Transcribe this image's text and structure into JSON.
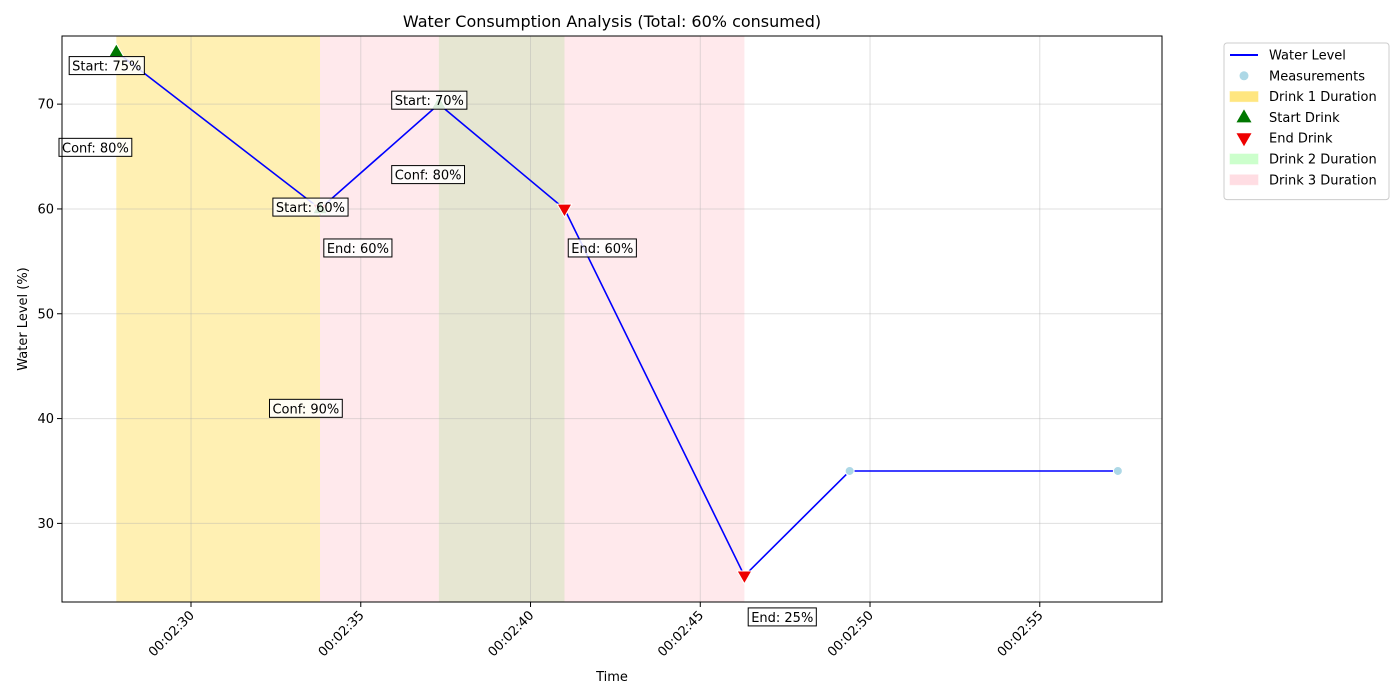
{
  "chart_data": {
    "type": "line",
    "title": "Water Consumption Analysis (Total: 60% consumed)",
    "xlabel": "Time",
    "ylabel": "Water Level (%)",
    "xlim": [
      146.2,
      178.6
    ],
    "ylim": [
      22.5,
      76.5
    ],
    "grid": true,
    "x_ticks": [
      {
        "t": 150,
        "label": "00:02:30"
      },
      {
        "t": 155,
        "label": "00:02:35"
      },
      {
        "t": 160,
        "label": "00:02:40"
      },
      {
        "t": 165,
        "label": "00:02:45"
      },
      {
        "t": 170,
        "label": "00:02:50"
      },
      {
        "t": 175,
        "label": "00:02:55"
      }
    ],
    "y_ticks": [
      30,
      40,
      50,
      60,
      70
    ],
    "series": [
      {
        "name": "Water Level",
        "color": "#0000ff",
        "points": [
          {
            "t": 147.8,
            "v": 75
          },
          {
            "t": 153.8,
            "v": 60
          },
          {
            "t": 157.3,
            "v": 70
          },
          {
            "t": 161.0,
            "v": 60
          },
          {
            "t": 166.3,
            "v": 25
          },
          {
            "t": 169.4,
            "v": 35
          },
          {
            "t": 177.3,
            "v": 35
          }
        ]
      }
    ],
    "measurements": {
      "name": "Measurements",
      "color": "#add8e6",
      "points": [
        {
          "t": 169.4,
          "v": 35
        },
        {
          "t": 177.3,
          "v": 35
        }
      ]
    },
    "spans": [
      {
        "name": "Drink 1 Duration",
        "start": 147.8,
        "end": 153.8,
        "color": "#ffe680",
        "opacity": 0.6
      },
      {
        "name": "Drink 3 Duration",
        "start": 153.8,
        "end": 157.3,
        "color": "#ffb6c1",
        "opacity": 0.3
      },
      {
        "name": "Drink 2 Duration",
        "start": 157.3,
        "end": 161.0,
        "color": "#d6d6b4",
        "opacity": 0.6
      },
      {
        "name": "Drink 3 Duration",
        "start": 161.0,
        "end": 166.3,
        "color": "#ffb6c1",
        "opacity": 0.3
      }
    ],
    "start_markers": [
      {
        "t": 147.8,
        "v": 75
      },
      {
        "t": 153.8,
        "v": 60
      },
      {
        "t": 157.3,
        "v": 70
      }
    ],
    "end_markers": [
      {
        "t": 153.8,
        "v": 60
      },
      {
        "t": 161.0,
        "v": 60
      },
      {
        "t": 166.3,
        "v": 25
      }
    ],
    "annotations": [
      {
        "text": "Start: 75%",
        "t": 146.5,
        "v": 73.2
      },
      {
        "text": "Conf: 80%",
        "t": 146.2,
        "v": 65.4
      },
      {
        "text": "Start: 70%",
        "t": 156.0,
        "v": 69.9
      },
      {
        "text": "Start: 60%",
        "t": 152.5,
        "v": 59.7
      },
      {
        "text": "Conf: 80%",
        "t": 156.0,
        "v": 62.8
      },
      {
        "text": "End: 60%",
        "t": 154.0,
        "v": 55.8
      },
      {
        "text": "End: 60%",
        "t": 161.2,
        "v": 55.8
      },
      {
        "text": "Conf: 90%",
        "t": 152.4,
        "v": 40.5
      },
      {
        "text": "End: 25%",
        "t": 166.5,
        "v": 20.6
      }
    ],
    "legend": {
      "position": "outside-top-right",
      "items": [
        {
          "label": "Water Level",
          "kind": "line",
          "color": "#0000ff"
        },
        {
          "label": "Measurements",
          "kind": "dot",
          "color": "#add8e6"
        },
        {
          "label": "Drink 1 Duration",
          "kind": "patch",
          "color": "#ffe680"
        },
        {
          "label": "Start Drink",
          "kind": "triangle-up",
          "color": "#007700"
        },
        {
          "label": "End Drink",
          "kind": "triangle-down",
          "color": "#ee0000"
        },
        {
          "label": "Drink 2 Duration",
          "kind": "patch",
          "color": "#ccffcc"
        },
        {
          "label": "Drink 3 Duration",
          "kind": "patch",
          "color": "#ffdde3"
        }
      ]
    }
  }
}
